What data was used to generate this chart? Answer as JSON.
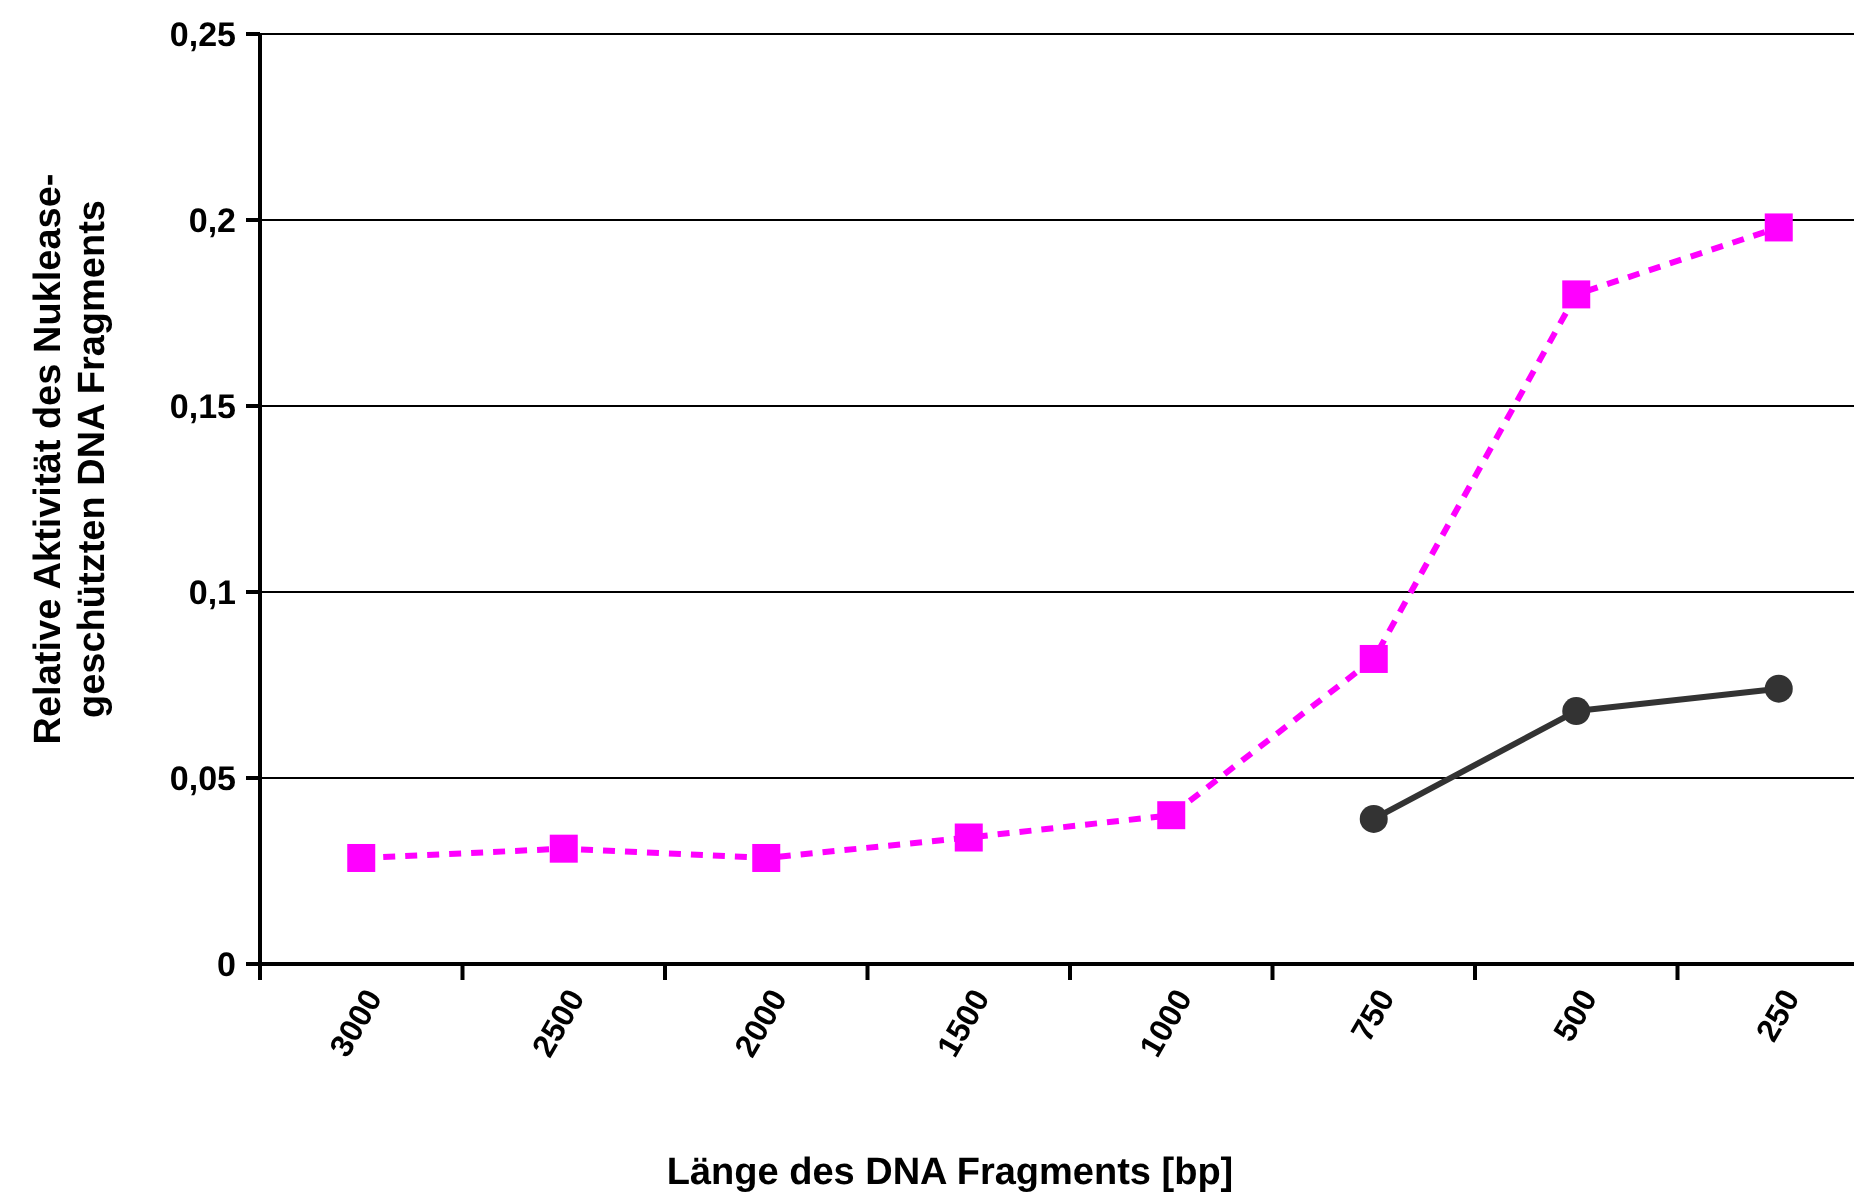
{
  "chart_data": {
    "type": "line",
    "xlabel": "Länge des DNA Fragments [bp]",
    "ylabel": "Relative Aktivität des Nuklease-geschützten DNA Fragments",
    "categories": [
      "3000",
      "2500",
      "2000",
      "1500",
      "1000",
      "750",
      "500",
      "250"
    ],
    "series": [
      {
        "color": "#ff00ff",
        "line_style": "dashed",
        "marker": "square",
        "values": [
          0.0285,
          0.031,
          0.0285,
          0.034,
          0.04,
          0.082,
          0.18,
          0.198
        ]
      },
      {
        "color": "#333333",
        "line_style": "solid",
        "marker": "circle",
        "values": [
          null,
          null,
          null,
          null,
          null,
          0.039,
          0.068,
          0.074
        ]
      }
    ],
    "ylim": [
      0,
      0.25
    ],
    "yticks": [
      {
        "value": 0,
        "label": "0"
      },
      {
        "value": 0.05,
        "label": "0,05"
      },
      {
        "value": 0.1,
        "label": "0,1"
      },
      {
        "value": 0.15,
        "label": "0,15"
      },
      {
        "value": 0.2,
        "label": "0,2"
      },
      {
        "value": 0.25,
        "label": "0,25"
      }
    ],
    "grid": "y"
  }
}
